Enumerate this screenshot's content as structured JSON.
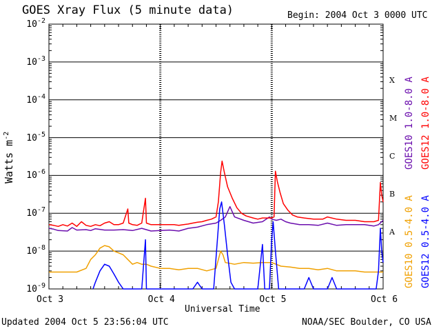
{
  "title": "GOES Xray Flux (5 minute data)",
  "begin_text": "Begin:  2004 Oct 3 0000 UTC",
  "updated_text": "Updated 2004 Oct  5 23:56:04 UTC",
  "credit_text": "NOAA/SEC Boulder, CO USA",
  "chart_data": {
    "type": "line",
    "title": "GOES Xray Flux (5 minute data)",
    "xlabel": "Universal Time",
    "ylabel_base": "Watts m",
    "ylabel_exp": "-2",
    "yscale": "log",
    "ylim": [
      1e-09,
      0.01
    ],
    "xlim": [
      0,
      72
    ],
    "x_unit": "hours since 2004 Oct 3 0000 UTC",
    "x_ticks": [
      {
        "x": 0,
        "label": "Oct 3"
      },
      {
        "x": 24,
        "label": "Oct 4"
      },
      {
        "x": 48,
        "label": "Oct 5"
      },
      {
        "x": 72,
        "label": "Oct 6"
      }
    ],
    "y_ticks": [
      {
        "exp": -2,
        "base": "10",
        "sup": "-2"
      },
      {
        "exp": -3,
        "base": "10",
        "sup": "-3"
      },
      {
        "exp": -4,
        "base": "10",
        "sup": "-4"
      },
      {
        "exp": -5,
        "base": "10",
        "sup": "-5"
      },
      {
        "exp": -6,
        "base": "10",
        "sup": "-6"
      },
      {
        "exp": -7,
        "base": "10",
        "sup": "-7"
      },
      {
        "exp": -8,
        "base": "10",
        "sup": "-8"
      },
      {
        "exp": -9,
        "base": "10",
        "sup": "-9"
      }
    ],
    "flare_classes": [
      {
        "label": "X",
        "exp": -4
      },
      {
        "label": "M",
        "exp": -5
      },
      {
        "label": "C",
        "exp": -6
      },
      {
        "label": "B",
        "exp": -7
      },
      {
        "label": "A",
        "exp": -8
      }
    ],
    "grid": "horizontal lines at each decade; dashed vertical day markers",
    "series": [
      {
        "name": "GOES10 1.0-8.0 A",
        "color": "#6a0dad",
        "points": [
          [
            0,
            4e-08
          ],
          [
            1,
            3.8e-08
          ],
          [
            2,
            3.5e-08
          ],
          [
            4,
            3.4e-08
          ],
          [
            5,
            4.2e-08
          ],
          [
            6,
            3.6e-08
          ],
          [
            8,
            3.7e-08
          ],
          [
            9,
            3.5e-08
          ],
          [
            10,
            3.9e-08
          ],
          [
            12,
            3.6e-08
          ],
          [
            14,
            3.6e-08
          ],
          [
            16,
            3.7e-08
          ],
          [
            18,
            3.5e-08
          ],
          [
            20,
            4e-08
          ],
          [
            22,
            3.4e-08
          ],
          [
            24,
            3.5e-08
          ],
          [
            26,
            3.6e-08
          ],
          [
            28,
            3.4e-08
          ],
          [
            30,
            4e-08
          ],
          [
            32,
            4.3e-08
          ],
          [
            34,
            5e-08
          ],
          [
            36,
            5.5e-08
          ],
          [
            37,
            6.5e-08
          ],
          [
            38,
            8e-08
          ],
          [
            39,
            1.5e-07
          ],
          [
            40,
            8e-08
          ],
          [
            42,
            6.5e-08
          ],
          [
            44,
            5.5e-08
          ],
          [
            46,
            6e-08
          ],
          [
            47.5,
            8e-08
          ],
          [
            48,
            7e-08
          ],
          [
            49,
            6.5e-08
          ],
          [
            50,
            7e-08
          ],
          [
            51,
            6e-08
          ],
          [
            52,
            5.5e-08
          ],
          [
            54,
            5e-08
          ],
          [
            56,
            5e-08
          ],
          [
            58,
            4.8e-08
          ],
          [
            60,
            5.5e-08
          ],
          [
            62,
            4.8e-08
          ],
          [
            64,
            5e-08
          ],
          [
            66,
            5e-08
          ],
          [
            68,
            5e-08
          ],
          [
            70,
            4.6e-08
          ],
          [
            71,
            5e-08
          ],
          [
            72,
            6.5e-08
          ]
        ]
      },
      {
        "name": "GOES12 1.0-8.0 A",
        "color": "#ff0000",
        "points": [
          [
            0,
            5e-08
          ],
          [
            1,
            4.8e-08
          ],
          [
            2,
            4.5e-08
          ],
          [
            3,
            5e-08
          ],
          [
            4,
            4.6e-08
          ],
          [
            5,
            5.5e-08
          ],
          [
            6,
            4.5e-08
          ],
          [
            7,
            6e-08
          ],
          [
            8,
            4.8e-08
          ],
          [
            9,
            4.5e-08
          ],
          [
            10,
            5e-08
          ],
          [
            11,
            4.7e-08
          ],
          [
            12,
            5.5e-08
          ],
          [
            13,
            6e-08
          ],
          [
            14,
            5e-08
          ],
          [
            15,
            5e-08
          ],
          [
            16,
            5.5e-08
          ],
          [
            17,
            1.3e-07
          ],
          [
            17.2,
            5.5e-08
          ],
          [
            18,
            5e-08
          ],
          [
            19,
            4.8e-08
          ],
          [
            20,
            5.5e-08
          ],
          [
            20.8,
            2.5e-07
          ],
          [
            21,
            5.5e-08
          ],
          [
            22,
            5e-08
          ],
          [
            23,
            5e-08
          ],
          [
            24,
            5e-08
          ],
          [
            25,
            5e-08
          ],
          [
            26,
            5e-08
          ],
          [
            27,
            5e-08
          ],
          [
            28,
            4.8e-08
          ],
          [
            29,
            5e-08
          ],
          [
            30,
            5.2e-08
          ],
          [
            31,
            5.5e-08
          ],
          [
            32,
            5.8e-08
          ],
          [
            33,
            6e-08
          ],
          [
            34,
            6.5e-08
          ],
          [
            35,
            7e-08
          ],
          [
            36,
            8e-08
          ],
          [
            36.5,
            2e-07
          ],
          [
            37,
            1.2e-06
          ],
          [
            37.3,
            2.4e-06
          ],
          [
            37.8,
            1.2e-06
          ],
          [
            38.5,
            5e-07
          ],
          [
            39.5,
            2.5e-07
          ],
          [
            40.5,
            1.4e-07
          ],
          [
            41.5,
            1e-07
          ],
          [
            42.5,
            8.5e-08
          ],
          [
            44,
            7.5e-08
          ],
          [
            45,
            7e-08
          ],
          [
            46,
            7.5e-08
          ],
          [
            47,
            7.5e-08
          ],
          [
            48,
            7.5e-08
          ],
          [
            48.5,
            8e-08
          ],
          [
            48.8,
            1.3e-06
          ],
          [
            49.2,
            7e-07
          ],
          [
            49.8,
            3.5e-07
          ],
          [
            50.5,
            1.8e-07
          ],
          [
            51.5,
            1.2e-07
          ],
          [
            52.5,
            9e-08
          ],
          [
            53.5,
            8e-08
          ],
          [
            55,
            7.5e-08
          ],
          [
            57,
            7e-08
          ],
          [
            59,
            7e-08
          ],
          [
            60,
            8e-08
          ],
          [
            62,
            7e-08
          ],
          [
            64,
            6.5e-08
          ],
          [
            66,
            6.5e-08
          ],
          [
            68,
            6e-08
          ],
          [
            70,
            6e-08
          ],
          [
            71,
            6.5e-08
          ],
          [
            71.4,
            6.5e-07
          ],
          [
            71.7,
            3e-07
          ],
          [
            72,
            2e-07
          ]
        ]
      },
      {
        "name": "GOES10 0.5-4.0 A",
        "color": "#f0a000",
        "points": [
          [
            0,
            2.8e-09
          ],
          [
            2,
            2.8e-09
          ],
          [
            4,
            2.8e-09
          ],
          [
            6,
            2.8e-09
          ],
          [
            8,
            3.5e-09
          ],
          [
            9,
            6e-09
          ],
          [
            10,
            8e-09
          ],
          [
            11,
            1.2e-08
          ],
          [
            12,
            1.4e-08
          ],
          [
            13,
            1.3e-08
          ],
          [
            14,
            1e-08
          ],
          [
            15,
            9e-09
          ],
          [
            16,
            8e-09
          ],
          [
            17,
            6e-09
          ],
          [
            18,
            4.5e-09
          ],
          [
            19,
            5e-09
          ],
          [
            20,
            4.5e-09
          ],
          [
            21,
            4.5e-09
          ],
          [
            22,
            4e-09
          ],
          [
            24,
            3.5e-09
          ],
          [
            26,
            3.5e-09
          ],
          [
            28,
            3.2e-09
          ],
          [
            30,
            3.5e-09
          ],
          [
            32,
            3.5e-09
          ],
          [
            34,
            3e-09
          ],
          [
            36,
            3.5e-09
          ],
          [
            36.5,
            6e-09
          ],
          [
            37,
            1e-08
          ],
          [
            37.5,
            8e-09
          ],
          [
            38,
            5e-09
          ],
          [
            40,
            4.5e-09
          ],
          [
            42,
            5e-09
          ],
          [
            44,
            4.8e-09
          ],
          [
            46,
            5e-09
          ],
          [
            48,
            5e-09
          ],
          [
            50,
            4e-09
          ],
          [
            52,
            3.8e-09
          ],
          [
            54,
            3.5e-09
          ],
          [
            56,
            3.5e-09
          ],
          [
            58,
            3.2e-09
          ],
          [
            60,
            3.5e-09
          ],
          [
            62,
            3e-09
          ],
          [
            64,
            3e-09
          ],
          [
            66,
            3e-09
          ],
          [
            68,
            2.8e-09
          ],
          [
            70,
            2.8e-09
          ],
          [
            72,
            2.8e-09
          ]
        ]
      },
      {
        "name": "GOES12 0.5-4.0 A",
        "color": "#0000ff",
        "points": [
          [
            9.5,
            1e-09
          ],
          [
            10,
            1.5e-09
          ],
          [
            11,
            3e-09
          ],
          [
            12,
            4.5e-09
          ],
          [
            13,
            4e-09
          ],
          [
            14,
            2.5e-09
          ],
          [
            15,
            1.5e-09
          ],
          [
            16,
            1e-09
          ],
          [
            20,
            1e-09
          ],
          [
            20.8,
            2e-08
          ],
          [
            21,
            1e-09
          ],
          [
            31,
            1e-09
          ],
          [
            32,
            1.5e-09
          ],
          [
            33,
            1e-09
          ],
          [
            35.5,
            1e-09
          ],
          [
            36.3,
            2e-08
          ],
          [
            36.8,
            1.3e-07
          ],
          [
            37.2,
            2e-07
          ],
          [
            37.8,
            5e-08
          ],
          [
            38.5,
            8e-09
          ],
          [
            39.2,
            1.5e-09
          ],
          [
            40,
            1e-09
          ],
          [
            45,
            1e-09
          ],
          [
            46,
            1.5e-08
          ],
          [
            46.5,
            1e-09
          ],
          [
            47.5,
            1e-09
          ],
          [
            48,
            2e-08
          ],
          [
            48.3,
            6e-08
          ],
          [
            48.8,
            1e-08
          ],
          [
            49.5,
            1e-09
          ],
          [
            55,
            1e-09
          ],
          [
            56,
            2e-09
          ],
          [
            57,
            1e-09
          ],
          [
            60,
            1e-09
          ],
          [
            61,
            2e-09
          ],
          [
            62,
            1e-09
          ],
          [
            70.5,
            1e-09
          ],
          [
            71,
            3e-09
          ],
          [
            71.4,
            4e-08
          ],
          [
            71.7,
            1e-08
          ],
          [
            72,
            5e-09
          ]
        ]
      }
    ]
  }
}
